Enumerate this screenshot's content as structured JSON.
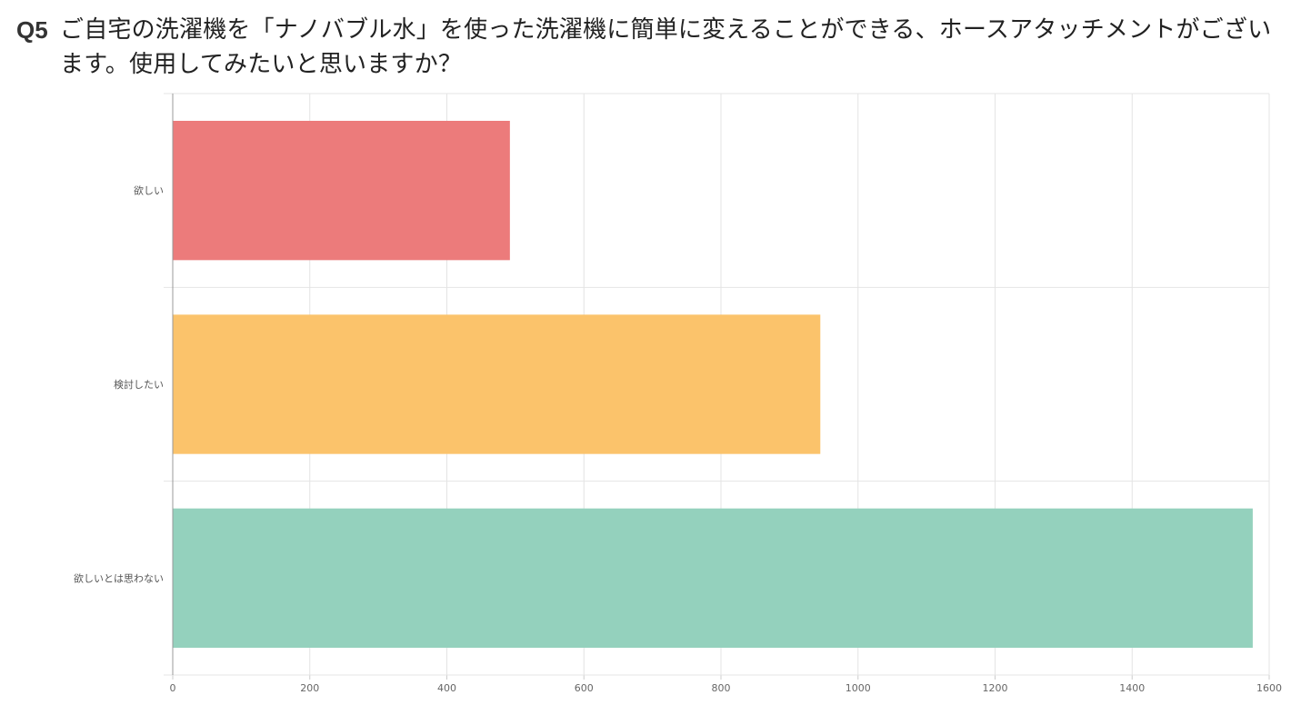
{
  "question": {
    "number": "Q5",
    "text": "ご自宅の洗濯機を「ナノバブル水」を使った洗濯機に簡単に変えることができる、ホースアタッチメントがございます。使用してみたいと思いますか？"
  },
  "chart_data": {
    "type": "bar",
    "orientation": "horizontal",
    "categories": [
      "欲しい",
      "検討したい",
      "欲しいとは思わない"
    ],
    "values": [
      492,
      945,
      1576
    ],
    "colors": [
      "#ec7b7b",
      "#fbc36b",
      "#94d1bd"
    ],
    "xlim": [
      0,
      1600
    ],
    "xticks": [
      0,
      200,
      400,
      600,
      800,
      1000,
      1200,
      1400,
      1600
    ],
    "title": "",
    "xlabel": "",
    "ylabel": "",
    "grid": true,
    "legend": "none"
  }
}
